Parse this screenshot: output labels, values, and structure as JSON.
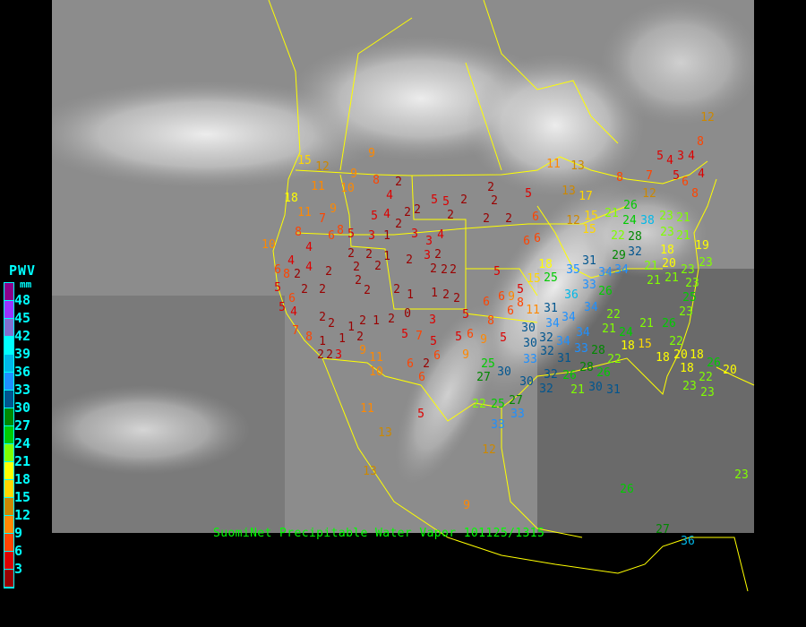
{
  "caption": "SuomiNet Precipitable Water Vapor 101125/1315",
  "legend": {
    "title": "PWV",
    "unit": "mm",
    "labels": [
      "48",
      "45",
      "42",
      "39",
      "36",
      "33",
      "30",
      "27",
      "24",
      "21",
      "18",
      "15",
      "12",
      "9",
      "6",
      "3"
    ],
    "colors": [
      "#8b008b",
      "#9933ff",
      "#8070d0",
      "#00ffff",
      "#00b8e8",
      "#1e90ff",
      "#00558f",
      "#008800",
      "#00cc00",
      "#80ff00",
      "#ffff00",
      "#ffd700",
      "#cc8800",
      "#ff8800",
      "#ff4400",
      "#dd0000",
      "#990000"
    ]
  },
  "map": {
    "background": "satellite infrared imagery, North America",
    "border_color": "#ffff00",
    "station_values": [
      9,
      15,
      12,
      9,
      18,
      11,
      10,
      8,
      2,
      9,
      11,
      7,
      4,
      5,
      5,
      2,
      2,
      2,
      5,
      8,
      6,
      5,
      5,
      4,
      2,
      2,
      2,
      10,
      4,
      8,
      3,
      1,
      2,
      3,
      4,
      2,
      2,
      6,
      4,
      4,
      2,
      2,
      2,
      2,
      2,
      1,
      2,
      3,
      2,
      2,
      2,
      2,
      3,
      6,
      6,
      5,
      6,
      8,
      2,
      5,
      6,
      2,
      2,
      2,
      2,
      2,
      1,
      1,
      2,
      2,
      6,
      6,
      9,
      8,
      5,
      4,
      2,
      2,
      1,
      2,
      1,
      2,
      0,
      3,
      5,
      8,
      6,
      11,
      7,
      8,
      1,
      2,
      2,
      3,
      1,
      2,
      5,
      7,
      5,
      5,
      6,
      9,
      5,
      9,
      11,
      10,
      6,
      2,
      6,
      9,
      6,
      11,
      5,
      13,
      13,
      12,
      9,
      11,
      13,
      8,
      7,
      5,
      4,
      3,
      4,
      4,
      12,
      8,
      5,
      6,
      12,
      8,
      12,
      13,
      17,
      15,
      15,
      21,
      24,
      38,
      22,
      28,
      32,
      29,
      26,
      23,
      21,
      23,
      21,
      19,
      18,
      20,
      31,
      34,
      34,
      35,
      25,
      33,
      36,
      34,
      26,
      31,
      34,
      34,
      30,
      32,
      30,
      32,
      34,
      34,
      33,
      31,
      28,
      33,
      32,
      26,
      28,
      26,
      22,
      22,
      21,
      24,
      18,
      15,
      21,
      26,
      21,
      23,
      21,
      21,
      23,
      23,
      25,
      23,
      22,
      20,
      18,
      18,
      18,
      22,
      26,
      23,
      23,
      20,
      5,
      15,
      18,
      30,
      21,
      31,
      25,
      27,
      30,
      30,
      32,
      22,
      25,
      27,
      33,
      33,
      23,
      26,
      27,
      36
    ]
  }
}
